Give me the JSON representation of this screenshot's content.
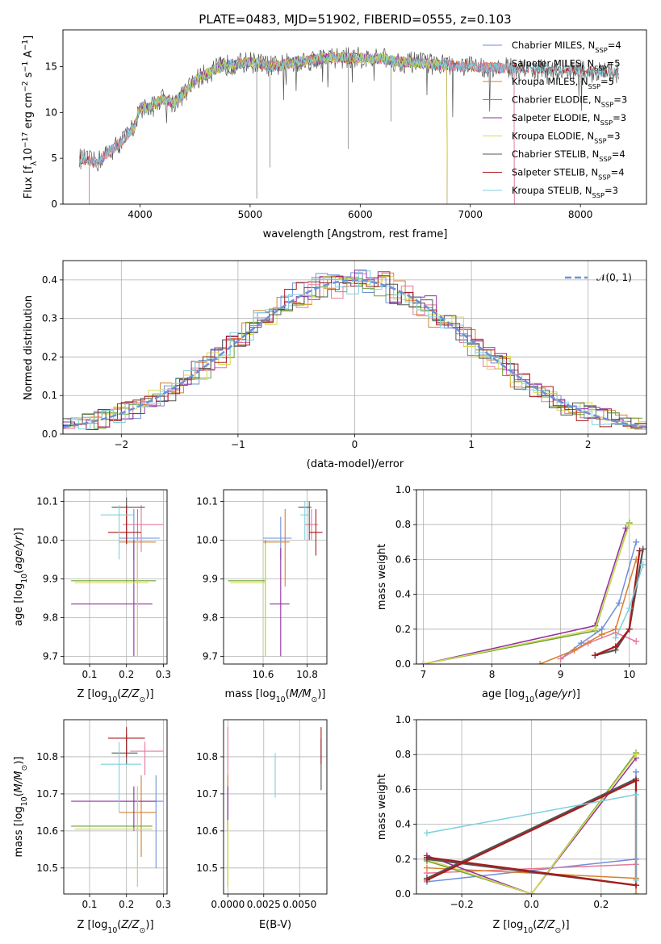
{
  "title": "PLATE=0483, MJD=51902, FIBERID=0555, z=0.103",
  "colors": {
    "chabrier_miles": "#6f8fd8",
    "salpeter_miles": "#e8799a",
    "kroupa_miles": "#d97f2e",
    "chabrier_elodie": "#6aa13a",
    "salpeter_elodie": "#9130a0",
    "kroupa_elodie": "#d5db4e",
    "chabrier_stelib": "#555555",
    "salpeter_stelib": "#a81b1b",
    "kroupa_stelib": "#7dd0dd",
    "normal_curve": "#6f8fd8"
  },
  "chart_data": [
    {
      "id": "spectrum",
      "type": "line",
      "xlabel": "wavelength [Angstrom, rest frame]",
      "ylabel": "Flux [f",
      "xlim": [
        3300,
        8600
      ],
      "ylim": [
        0,
        19
      ],
      "xticks": [
        4000,
        5000,
        6000,
        7000,
        8000
      ],
      "yticks": [
        0,
        5,
        10,
        15
      ],
      "legend_position": "right",
      "legend": [
        {
          "key": "chabrier_miles",
          "label": "Chabrier MILES, N",
          "sub": "SSP",
          "suffix": "=4"
        },
        {
          "key": "salpeter_miles",
          "label": "Salpeter MILES, N",
          "sub": "SSP",
          "suffix": "=5"
        },
        {
          "key": "kroupa_miles",
          "label": "Kroupa MILES, N",
          "sub": "SSP",
          "suffix": "=5"
        },
        {
          "key": "chabrier_elodie",
          "label": "Chabrier ELODIE, N",
          "sub": "SSP",
          "suffix": "=3"
        },
        {
          "key": "salpeter_elodie",
          "label": "Salpeter ELODIE, N",
          "sub": "SSP",
          "suffix": "=3"
        },
        {
          "key": "kroupa_elodie",
          "label": "Kroupa ELODIE, N",
          "sub": "SSP",
          "suffix": "=3"
        },
        {
          "key": "chabrier_stelib",
          "label": "Chabrier STELIB, N",
          "sub": "SSP",
          "suffix": "=4"
        },
        {
          "key": "salpeter_stelib",
          "label": "Salpeter STELIB, N",
          "sub": "SSP",
          "suffix": "=4"
        },
        {
          "key": "kroupa_stelib",
          "label": "Kroupa STELIB, N",
          "sub": "SSP",
          "suffix": "=3"
        }
      ],
      "continuum": [
        [
          3450,
          5.0
        ],
        [
          3600,
          4.5
        ],
        [
          3700,
          5.5
        ],
        [
          3850,
          7.0
        ],
        [
          3950,
          8.5
        ],
        [
          4000,
          10.5
        ],
        [
          4100,
          10.5
        ],
        [
          4200,
          11.5
        ],
        [
          4300,
          11.0
        ],
        [
          4400,
          12.0
        ],
        [
          4500,
          13.5
        ],
        [
          4600,
          14.2
        ],
        [
          4700,
          14.8
        ],
        [
          4800,
          15.2
        ],
        [
          4900,
          15.3
        ],
        [
          5000,
          15.5
        ],
        [
          5100,
          15.3
        ],
        [
          5200,
          15.0
        ],
        [
          5300,
          15.2
        ],
        [
          5400,
          15.5
        ],
        [
          5500,
          15.6
        ],
        [
          5600,
          15.8
        ],
        [
          5700,
          15.9
        ],
        [
          5800,
          16.0
        ],
        [
          5900,
          15.9
        ],
        [
          6000,
          16.0
        ],
        [
          6100,
          15.8
        ],
        [
          6200,
          15.9
        ],
        [
          6300,
          15.6
        ],
        [
          6400,
          15.5
        ],
        [
          6500,
          15.4
        ],
        [
          6600,
          15.3
        ],
        [
          6700,
          15.2
        ],
        [
          6800,
          15.1
        ],
        [
          6900,
          15.0
        ],
        [
          7000,
          15.0
        ],
        [
          7200,
          14.9
        ],
        [
          7400,
          14.8
        ],
        [
          7600,
          14.7
        ],
        [
          7800,
          14.6
        ],
        [
          8000,
          14.5
        ],
        [
          8200,
          14.4
        ],
        [
          8350,
          14.3
        ]
      ]
    },
    {
      "id": "residuals",
      "type": "line",
      "xlabel": "(data-model)/error",
      "ylabel": "Normed distribution",
      "xlim": [
        -2.5,
        2.5
      ],
      "ylim": [
        0,
        0.45
      ],
      "xticks": [
        -2,
        -1,
        0,
        1,
        2
      ],
      "yticks": [
        0.0,
        0.1,
        0.2,
        0.3,
        0.4
      ],
      "legend_position": "top-right",
      "normal_label": "𝒩(0, 1)",
      "bin_width": 0.1
    },
    {
      "id": "age_vs_Z",
      "type": "scatter",
      "xlabel": "Z [log",
      "ylabel": "age  [log",
      "xlim": [
        0.03,
        0.31
      ],
      "ylim": [
        9.68,
        10.13
      ],
      "xticks": [
        0.1,
        0.2,
        0.3
      ],
      "yticks": [
        9.7,
        9.8,
        9.9,
        10.0,
        10.1
      ],
      "points": [
        {
          "key": "chabrier_miles",
          "x": 0.22,
          "xlo": 0.18,
          "xhi": 0.29,
          "y": 10.005,
          "ylo": 9.95,
          "yhi": 10.08
        },
        {
          "key": "salpeter_miles",
          "x": 0.24,
          "xlo": 0.19,
          "xhi": 0.3,
          "y": 10.04,
          "ylo": 9.97,
          "yhi": 10.09
        },
        {
          "key": "kroupa_miles",
          "x": 0.23,
          "xlo": 0.18,
          "xhi": 0.28,
          "y": 9.995,
          "ylo": 9.9,
          "yhi": 10.08
        },
        {
          "key": "chabrier_elodie",
          "x": 0.23,
          "xlo": 0.05,
          "xhi": 0.28,
          "y": 9.895,
          "ylo": 9.7,
          "yhi": 9.99
        },
        {
          "key": "salpeter_elodie",
          "x": 0.22,
          "xlo": 0.05,
          "xhi": 0.27,
          "y": 9.835,
          "ylo": 9.7,
          "yhi": 10.0
        },
        {
          "key": "kroupa_elodie",
          "x": 0.23,
          "xlo": 0.06,
          "xhi": 0.26,
          "y": 9.89,
          "ylo": 9.7,
          "yhi": 10.0
        },
        {
          "key": "chabrier_stelib",
          "x": 0.2,
          "xlo": 0.16,
          "xhi": 0.25,
          "y": 10.085,
          "ylo": 9.99,
          "yhi": 10.11
        },
        {
          "key": "salpeter_stelib",
          "x": 0.2,
          "xlo": 0.15,
          "xhi": 0.24,
          "y": 10.02,
          "ylo": 9.99,
          "yhi": 10.09
        },
        {
          "key": "kroupa_stelib",
          "x": 0.18,
          "xlo": 0.13,
          "xhi": 0.22,
          "y": 10.065,
          "ylo": 9.95,
          "yhi": 10.09
        }
      ]
    },
    {
      "id": "age_vs_mass",
      "type": "scatter",
      "xlabel": "mass [log",
      "ylabel": "",
      "xlim": [
        10.42,
        10.89
      ],
      "ylim": [
        9.68,
        10.13
      ],
      "xticks": [
        10.6,
        10.8
      ],
      "yticks": [
        9.7,
        9.8,
        9.9,
        10.0,
        10.1
      ],
      "points": [
        {
          "key": "chabrier_miles",
          "x": 10.68,
          "xlo": 10.6,
          "xhi": 10.73,
          "y": 10.005,
          "ylo": 9.95,
          "yhi": 10.06
        },
        {
          "key": "salpeter_miles",
          "x": 10.82,
          "xlo": 10.79,
          "xhi": 10.85,
          "y": 10.04,
          "ylo": 10.0,
          "yhi": 10.08
        },
        {
          "key": "kroupa_miles",
          "x": 10.7,
          "xlo": 10.6,
          "xhi": 10.72,
          "y": 9.995,
          "ylo": 9.88,
          "yhi": 10.08
        },
        {
          "key": "chabrier_elodie",
          "x": 10.61,
          "xlo": 10.44,
          "xhi": 10.61,
          "y": 9.895,
          "ylo": 9.7,
          "yhi": 10.0
        },
        {
          "key": "salpeter_elodie",
          "x": 10.68,
          "xlo": 10.63,
          "xhi": 10.72,
          "y": 9.835,
          "ylo": 9.7,
          "yhi": 9.98
        },
        {
          "key": "kroupa_elodie",
          "x": 10.61,
          "xlo": 10.45,
          "xhi": 10.61,
          "y": 9.89,
          "ylo": 9.7,
          "yhi": 9.99
        },
        {
          "key": "chabrier_stelib",
          "x": 10.81,
          "xlo": 10.76,
          "xhi": 10.82,
          "y": 10.085,
          "ylo": 10.0,
          "yhi": 10.1
        },
        {
          "key": "salpeter_stelib",
          "x": 10.84,
          "xlo": 10.81,
          "xhi": 10.87,
          "y": 10.02,
          "ylo": 9.96,
          "yhi": 10.08
        },
        {
          "key": "kroupa_stelib",
          "x": 10.79,
          "xlo": 10.77,
          "xhi": 10.81,
          "y": 10.065,
          "ylo": 10.0,
          "yhi": 10.1
        }
      ]
    },
    {
      "id": "weight_vs_age",
      "type": "line",
      "xlabel": "age  [log",
      "ylabel": "mass weight",
      "xlim": [
        6.9,
        10.25
      ],
      "ylim": [
        0,
        1.0
      ],
      "xticks": [
        7,
        8,
        9,
        10
      ],
      "yticks": [
        0.0,
        0.2,
        0.4,
        0.6,
        0.8,
        1.0
      ],
      "series": [
        {
          "key": "chabrier_miles",
          "points": [
            [
              9.0,
              0.03
            ],
            [
              9.3,
              0.12
            ],
            [
              9.6,
              0.2
            ],
            [
              9.85,
              0.35
            ],
            [
              10.1,
              0.7
            ]
          ]
        },
        {
          "key": "salpeter_miles",
          "points": [
            [
              9.0,
              0.03
            ],
            [
              9.4,
              0.12
            ],
            [
              9.8,
              0.18
            ],
            [
              10.1,
              0.13
            ]
          ]
        },
        {
          "key": "kroupa_miles",
          "points": [
            [
              8.7,
              0.0
            ],
            [
              9.2,
              0.08
            ],
            [
              9.6,
              0.17
            ],
            [
              9.8,
              0.2
            ],
            [
              10.1,
              0.6
            ]
          ]
        },
        {
          "key": "chabrier_elodie",
          "points": [
            [
              7.0,
              0.0
            ],
            [
              9.5,
              0.19
            ],
            [
              10.0,
              0.81
            ]
          ]
        },
        {
          "key": "salpeter_elodie",
          "points": [
            [
              7.0,
              0.0
            ],
            [
              9.5,
              0.22
            ],
            [
              9.95,
              0.78
            ]
          ]
        },
        {
          "key": "kroupa_elodie",
          "points": [
            [
              7.0,
              0.0
            ],
            [
              9.5,
              0.2
            ],
            [
              10.0,
              0.8
            ]
          ]
        },
        {
          "key": "chabrier_stelib",
          "points": [
            [
              9.5,
              0.05
            ],
            [
              9.8,
              0.08
            ],
            [
              10.0,
              0.2
            ],
            [
              10.2,
              0.66
            ]
          ]
        },
        {
          "key": "salpeter_stelib",
          "points": [
            [
              9.5,
              0.05
            ],
            [
              9.8,
              0.1
            ],
            [
              10.0,
              0.2
            ],
            [
              10.15,
              0.65
            ]
          ]
        },
        {
          "key": "kroupa_stelib",
          "points": [
            [
              9.8,
              0.15
            ],
            [
              10.0,
              0.32
            ],
            [
              10.2,
              0.57
            ]
          ]
        }
      ]
    },
    {
      "id": "mass_vs_Z",
      "type": "scatter",
      "xlabel": "Z [log",
      "ylabel": "mass [log",
      "xlim": [
        0.03,
        0.31
      ],
      "ylim": [
        10.43,
        10.9
      ],
      "xticks": [
        0.1,
        0.2,
        0.3
      ],
      "yticks": [
        10.5,
        10.6,
        10.7,
        10.8
      ],
      "points": [
        {
          "key": "chabrier_miles",
          "x": 0.28,
          "xlo": 0.18,
          "xhi": 0.3,
          "y": 10.68,
          "ylo": 10.5,
          "yhi": 10.75
        },
        {
          "key": "salpeter_miles",
          "x": 0.25,
          "xlo": 0.21,
          "xhi": 0.3,
          "y": 10.815,
          "ylo": 10.75,
          "yhi": 10.84
        },
        {
          "key": "kroupa_miles",
          "x": 0.24,
          "xlo": 0.18,
          "xhi": 0.28,
          "y": 10.65,
          "ylo": 10.53,
          "yhi": 10.75
        },
        {
          "key": "chabrier_elodie",
          "x": 0.23,
          "xlo": 0.05,
          "xhi": 0.27,
          "y": 10.613,
          "ylo": 10.45,
          "yhi": 10.72
        },
        {
          "key": "salpeter_elodie",
          "x": 0.22,
          "xlo": 0.05,
          "xhi": 0.28,
          "y": 10.68,
          "ylo": 10.6,
          "yhi": 10.72
        },
        {
          "key": "kroupa_elodie",
          "x": 0.23,
          "xlo": 0.06,
          "xhi": 0.27,
          "y": 10.605,
          "ylo": 10.45,
          "yhi": 10.72
        },
        {
          "key": "chabrier_stelib",
          "x": 0.2,
          "xlo": 0.16,
          "xhi": 0.23,
          "y": 10.81,
          "ylo": 10.78,
          "yhi": 10.86
        },
        {
          "key": "salpeter_stelib",
          "x": 0.2,
          "xlo": 0.15,
          "xhi": 0.25,
          "y": 10.85,
          "ylo": 10.8,
          "yhi": 10.88
        },
        {
          "key": "kroupa_stelib",
          "x": 0.18,
          "xlo": 0.13,
          "xhi": 0.24,
          "y": 10.78,
          "ylo": 10.65,
          "yhi": 10.84
        }
      ]
    },
    {
      "id": "mass_vs_ebv",
      "type": "scatter",
      "xlabel": "E(B-V)",
      "ylabel": "",
      "xlim": [
        -0.0003,
        0.0069
      ],
      "ylim": [
        10.43,
        10.9
      ],
      "xticks": [
        0.0,
        0.0025,
        0.005
      ],
      "xticklabels": [
        "0.0000",
        "0.0025",
        "0.0050"
      ],
      "yticks": [
        10.5,
        10.6,
        10.7,
        10.8
      ],
      "points": [
        {
          "key": "chabrier_miles",
          "x": 0.0,
          "y": 10.68,
          "ylo": 10.6,
          "yhi": 10.75
        },
        {
          "key": "salpeter_miles",
          "x": 0.0,
          "y": 10.82,
          "ylo": 10.75,
          "yhi": 10.88
        },
        {
          "key": "kroupa_miles",
          "x": 0.0,
          "y": 10.65,
          "ylo": 10.6,
          "yhi": 10.75
        },
        {
          "key": "chabrier_elodie",
          "x": 0.0,
          "y": 10.6,
          "ylo": 10.45,
          "yhi": 10.68
        },
        {
          "key": "salpeter_elodie",
          "x": 0.0,
          "y": 10.68,
          "ylo": 10.6,
          "yhi": 10.72
        },
        {
          "key": "kroupa_elodie",
          "x": 0.0,
          "y": 10.55,
          "ylo": 10.45,
          "yhi": 10.63
        },
        {
          "key": "chabrier_stelib",
          "x": 0.0065,
          "y": 10.78,
          "ylo": 10.71,
          "yhi": 10.85
        },
        {
          "key": "salpeter_stelib",
          "x": 0.0065,
          "y": 10.82,
          "ylo": 10.78,
          "yhi": 10.88
        },
        {
          "key": "kroupa_stelib",
          "x": 0.0033,
          "y": 10.75,
          "ylo": 10.69,
          "yhi": 10.81
        }
      ]
    },
    {
      "id": "weight_vs_Z",
      "type": "line",
      "xlabel": "Z [log",
      "ylabel": "mass weight",
      "xlim": [
        -0.33,
        0.33
      ],
      "ylim": [
        0,
        1.0
      ],
      "xticks": [
        -0.2,
        0.0,
        0.2
      ],
      "xticklabels": [
        "−0.2",
        "0.0",
        "0.2"
      ],
      "yticks": [
        0.0,
        0.2,
        0.4,
        0.6,
        0.8,
        1.0
      ],
      "series": [
        {
          "key": "chabrier_miles",
          "points": [
            [
              -0.3,
              0.07
            ],
            [
              0.3,
              0.2
            ],
            [
              0.3,
              0.7
            ]
          ]
        },
        {
          "key": "salpeter_miles",
          "points": [
            [
              -0.3,
              0.12
            ],
            [
              0.3,
              0.17
            ]
          ]
        },
        {
          "key": "kroupa_miles",
          "points": [
            [
              -0.3,
              0.15
            ],
            [
              0.3,
              0.09
            ],
            [
              0.3,
              0.0
            ]
          ]
        },
        {
          "key": "chabrier_elodie",
          "points": [
            [
              -0.3,
              0.19
            ],
            [
              0.0,
              0.0
            ],
            [
              0.3,
              0.81
            ]
          ]
        },
        {
          "key": "salpeter_elodie",
          "points": [
            [
              -0.3,
              0.22
            ],
            [
              0.0,
              0.0
            ],
            [
              0.3,
              0.78
            ]
          ]
        },
        {
          "key": "kroupa_elodie",
          "points": [
            [
              -0.3,
              0.2
            ],
            [
              0.0,
              0.0
            ],
            [
              0.3,
              0.8
            ]
          ]
        },
        {
          "key": "chabrier_stelib",
          "points": [
            [
              -0.3,
              0.09
            ],
            [
              0.3,
              0.66
            ],
            [
              0.3,
              0.05
            ],
            [
              -0.3,
              0.2
            ]
          ]
        },
        {
          "key": "salpeter_stelib",
          "points": [
            [
              -0.3,
              0.08
            ],
            [
              0.3,
              0.65
            ],
            [
              0.3,
              0.05
            ],
            [
              -0.3,
              0.21
            ]
          ]
        },
        {
          "key": "kroupa_stelib",
          "points": [
            [
              -0.3,
              0.35
            ],
            [
              0.3,
              0.57
            ],
            [
              0.3,
              0.08
            ]
          ]
        }
      ]
    }
  ]
}
